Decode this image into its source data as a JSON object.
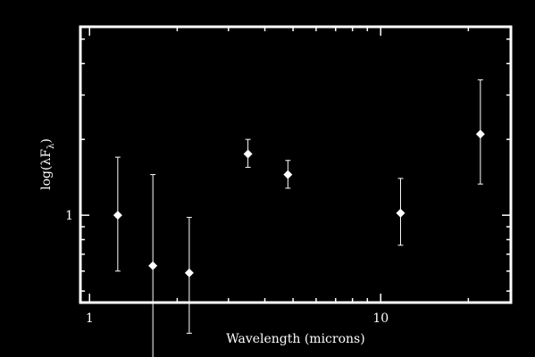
{
  "chart_data": {
    "type": "scatter",
    "title": "",
    "xlabel": "Wavelength (microns)",
    "ylabel": "log(λF",
    "ylabel_subscript": "λ",
    "ylabel_suffix": ")",
    "x_scale": "log",
    "y_scale": "log",
    "xlim": [
      0.93,
      28
    ],
    "ylim": [
      0.45,
      5.6
    ],
    "x_tick_labels": [
      {
        "value": 1,
        "label": "1"
      },
      {
        "value": 10,
        "label": "10"
      }
    ],
    "y_tick_labels": [
      {
        "value": 1,
        "label": "1"
      }
    ],
    "grid": false,
    "colors": {
      "background": "#000000",
      "foreground": "#ffffff"
    },
    "marker": "diamond",
    "points": [
      {
        "x": 1.25,
        "y": 1.0,
        "y_low": 0.6,
        "y_high": 1.7
      },
      {
        "x": 1.65,
        "y": 0.63,
        "y_low": 0.27,
        "y_high": 1.45
      },
      {
        "x": 2.2,
        "y": 0.59,
        "y_low": 0.34,
        "y_high": 0.98
      },
      {
        "x": 3.5,
        "y": 1.75,
        "y_low": 1.55,
        "y_high": 2.0
      },
      {
        "x": 4.8,
        "y": 1.45,
        "y_low": 1.28,
        "y_high": 1.65
      },
      {
        "x": 11.7,
        "y": 1.02,
        "y_low": 0.76,
        "y_high": 1.4
      },
      {
        "x": 22.0,
        "y": 2.1,
        "y_low": 1.33,
        "y_high": 3.45
      }
    ]
  }
}
